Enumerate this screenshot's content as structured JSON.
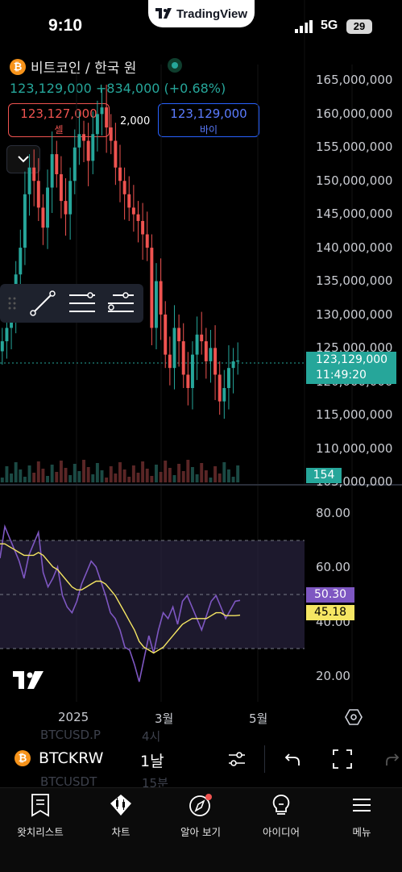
{
  "status_bar": {
    "time": "9:10",
    "network": "5G",
    "battery": "29"
  },
  "brand_pill": {
    "label": "TradingView"
  },
  "header": {
    "symbol_title": "비트코인 / 한국 원",
    "price_line": "123,129,000 +834,000 (+0.68%)",
    "sell": {
      "price": "123,127,000",
      "label": "셀"
    },
    "buy": {
      "price": "123,129,000",
      "label": "바이"
    },
    "spread": "2,000"
  },
  "price_axis": [
    "165,000,000",
    "160,000,000",
    "155,000,000",
    "150,000,000",
    "145,000,000",
    "140,000,000",
    "135,000,000",
    "130,000,000",
    "125,000,000",
    "120,000,000",
    "115,000,000",
    "110,000,000",
    "105,000,000"
  ],
  "last_price_tag": {
    "price": "123,129,000",
    "countdown": "11:49:20"
  },
  "volume_tag": "154",
  "rsi": {
    "axis": [
      "80.00",
      "60.00",
      "40.00",
      "20.00"
    ],
    "rsi_value": "50.30",
    "ma_value": "45.18"
  },
  "time_axis": [
    "2025",
    "3월",
    "5월"
  ],
  "symbol_bar": {
    "symbol": "BTCKRW",
    "interval": "1날",
    "ghost_top": [
      "BTCUSD.P",
      "4시"
    ],
    "ghost_bottom": [
      "BTCUSDT",
      "15분"
    ]
  },
  "nav": [
    {
      "label": "왓치리스트",
      "icon": "watchlist-icon"
    },
    {
      "label": "차트",
      "icon": "chart-icon"
    },
    {
      "label": "알아 보기",
      "icon": "explore-icon"
    },
    {
      "label": "아이디어",
      "icon": "ideas-icon"
    },
    {
      "label": "메뉴",
      "icon": "menu-icon"
    }
  ],
  "colors": {
    "up": "#26a69a",
    "down": "#ef5350",
    "rsi": "#7e57c2",
    "rsi_ma": "#f5e663",
    "buy": "#2962ff"
  },
  "chart_data": [
    {
      "type": "candlestick",
      "ylim": [
        105000000,
        165000000
      ],
      "ohlc_close_sequence": [
        126000000,
        128000000,
        131000000,
        136000000,
        140000000,
        148000000,
        152000000,
        150000000,
        146000000,
        143000000,
        149000000,
        154000000,
        151000000,
        147000000,
        145000000,
        150000000,
        155000000,
        157000000,
        156000000,
        153000000,
        157000000,
        160000000,
        161000000,
        158000000,
        156000000,
        152000000,
        150000000,
        148000000,
        146000000,
        145000000,
        144000000,
        142000000,
        140000000,
        128000000,
        135000000,
        130000000,
        124000000,
        122000000,
        128000000,
        126000000,
        121000000,
        119000000,
        124000000,
        127000000,
        126000000,
        123000000,
        125000000,
        121000000,
        117000000,
        119000000,
        122000000,
        123000000,
        123129000
      ],
      "last": 123129000
    },
    {
      "type": "line",
      "name": "RSI",
      "ylim": [
        15,
        85
      ],
      "series": [
        {
          "name": "RSI",
          "values": [
            65,
            76,
            72,
            68,
            64,
            58,
            66,
            70,
            74,
            60,
            55,
            58,
            62,
            52,
            48,
            46,
            50,
            56,
            60,
            64,
            62,
            57,
            52,
            46,
            44,
            40,
            34,
            33,
            28,
            22,
            30,
            38,
            32,
            40,
            46,
            44,
            48,
            42,
            50,
            52,
            48,
            44,
            40,
            45,
            50,
            52,
            48,
            44,
            47,
            50,
            50.3
          ]
        },
        {
          "name": "MA",
          "values": [
            70,
            70,
            69,
            68,
            67,
            66,
            66,
            66,
            67,
            66,
            64,
            62,
            61,
            59,
            57,
            55,
            54,
            54,
            55,
            56,
            57,
            57,
            56,
            54,
            52,
            49,
            46,
            43,
            40,
            36,
            34,
            33,
            32,
            33,
            34,
            36,
            38,
            40,
            42,
            43,
            44,
            44,
            44,
            44,
            45,
            46,
            46,
            45,
            45,
            45,
            45.18
          ]
        }
      ],
      "levels": [
        70,
        50,
        30
      ]
    }
  ]
}
